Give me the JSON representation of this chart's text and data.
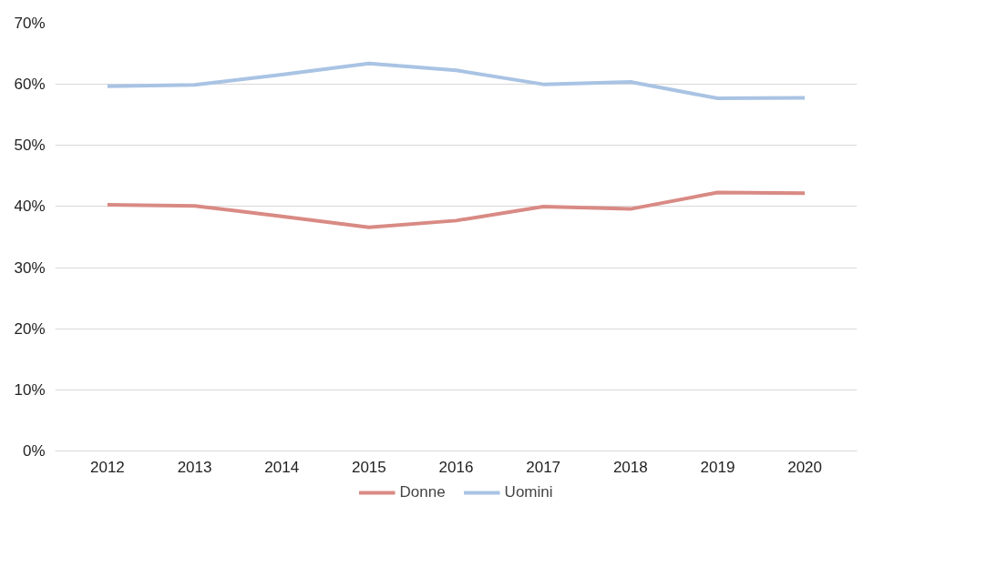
{
  "chart_data": {
    "type": "line",
    "categories": [
      "2012",
      "2013",
      "2014",
      "2015",
      "2016",
      "2017",
      "2018",
      "2019",
      "2020"
    ],
    "series": [
      {
        "name": "Donne",
        "color": "#d98a84",
        "values": [
          40.3,
          40.1,
          38.4,
          36.6,
          37.7,
          40.0,
          39.6,
          42.3,
          42.2
        ]
      },
      {
        "name": "Uomini",
        "color": "#a9c3e3",
        "values": [
          59.7,
          59.9,
          61.6,
          63.4,
          62.3,
          60.0,
          60.4,
          57.7,
          57.8
        ]
      }
    ],
    "ylim": [
      0,
      70
    ],
    "yticks": [
      {
        "value": 0,
        "label": "0%"
      },
      {
        "value": 10,
        "label": "10%"
      },
      {
        "value": 20,
        "label": "20%"
      },
      {
        "value": 30,
        "label": "30%"
      },
      {
        "value": 40,
        "label": "40%"
      },
      {
        "value": 50,
        "label": "50%"
      },
      {
        "value": 60,
        "label": "60%"
      },
      {
        "value": 70,
        "label": "70%"
      }
    ],
    "grid": "y",
    "legend": "bottom",
    "marker": "none",
    "line_style": "solid"
  }
}
